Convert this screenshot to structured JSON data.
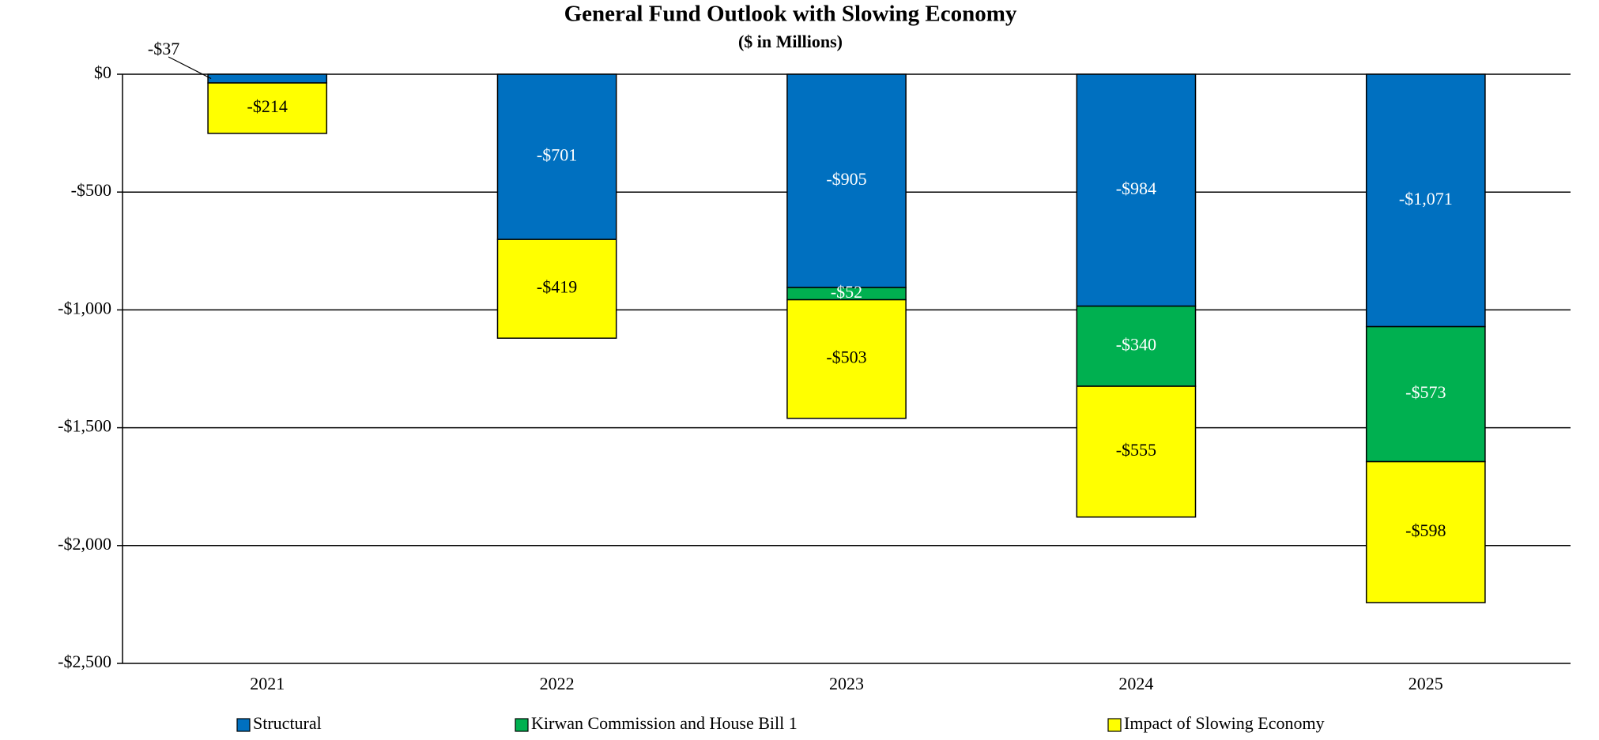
{
  "chart_data": {
    "type": "stacked_bar",
    "title": "General Fund Outlook with Slowing Economy",
    "subtitle": "($ in Millions)",
    "categories": [
      "2021",
      "2022",
      "2023",
      "2024",
      "2025"
    ],
    "series": [
      {
        "name": "Structural",
        "color": "#0070c0",
        "label_color": "#ffffff",
        "values": [
          -37,
          -701,
          -905,
          -984,
          -1071
        ],
        "value_labels": [
          "-$37",
          "-$701",
          "-$905",
          "-$984",
          "-$1,071"
        ]
      },
      {
        "name": "Kirwan Commission and House Bill 1",
        "color": "#00b050",
        "label_color": "#ffffff",
        "values": [
          null,
          null,
          -52,
          -340,
          -573
        ],
        "value_labels": [
          null,
          null,
          "-$52",
          "-$340",
          "-$573"
        ]
      },
      {
        "name": "Impact of Slowing Economy",
        "color": "#ffff00",
        "label_color": "#000000",
        "values": [
          -214,
          -419,
          -503,
          -555,
          -598
        ],
        "value_labels": [
          "-$214",
          "-$419",
          "-$503",
          "-$555",
          "-$598"
        ]
      }
    ],
    "ylim": [
      -2500,
      0
    ],
    "yticks": [
      {
        "value": 0,
        "label": "$0"
      },
      {
        "value": -500,
        "label": "-$500"
      },
      {
        "value": -1000,
        "label": "-$1,000"
      },
      {
        "value": -1500,
        "label": "-$1,500"
      },
      {
        "value": -2000,
        "label": "-$2,000"
      },
      {
        "value": -2500,
        "label": "-$2,500"
      }
    ],
    "grid": true,
    "legend": "bottom"
  }
}
